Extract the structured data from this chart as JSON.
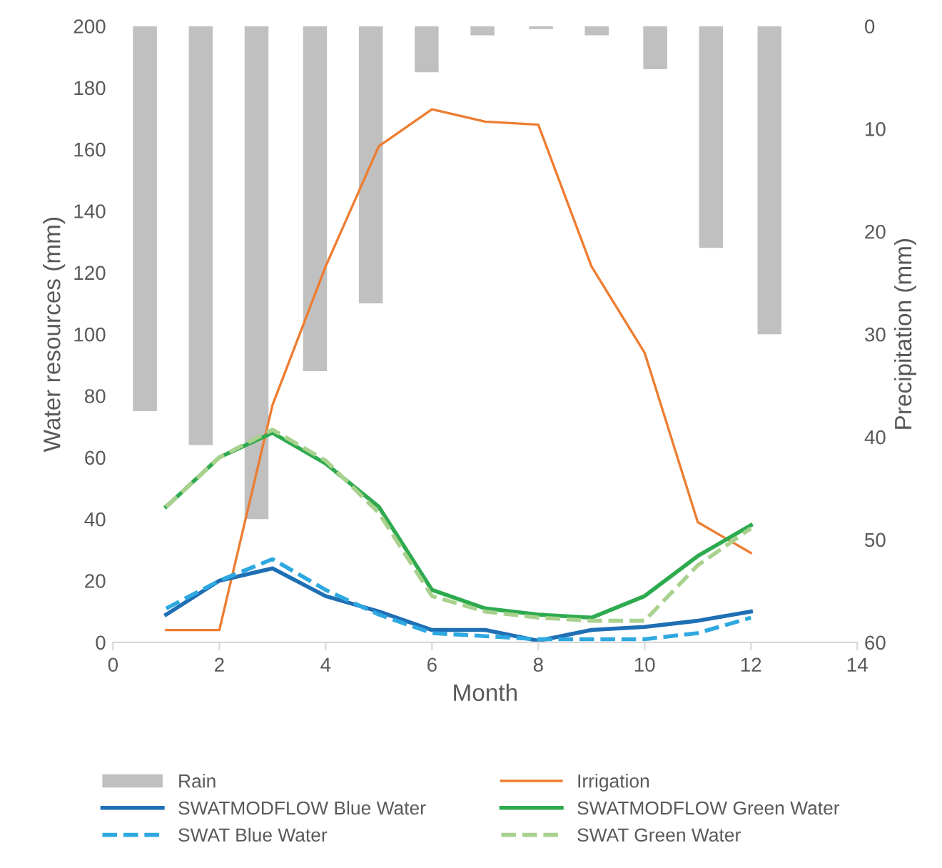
{
  "chart_data": {
    "type": "line",
    "xlabel": "Month",
    "ylabel": "Water resources (mm)",
    "y2label": "Precipitation (mm)",
    "xlim": [
      0,
      14
    ],
    "xticks": [
      0,
      2,
      4,
      6,
      8,
      10,
      12,
      14
    ],
    "ylim": [
      0,
      200
    ],
    "yticks": [
      0,
      20,
      40,
      60,
      80,
      100,
      120,
      140,
      160,
      180,
      200
    ],
    "y2lim": [
      60,
      0
    ],
    "y2ticks": [
      0,
      10,
      20,
      30,
      40,
      50,
      60
    ],
    "grid": false,
    "legend": "bottom",
    "line_style": "solid",
    "series": [
      {
        "name": "Rain",
        "type": "bar",
        "axis": "y2",
        "color": "#c0c0c0",
        "x": [
          0.6,
          1.65,
          2.7,
          3.8,
          4.85,
          5.9,
          6.95,
          8.05,
          9.1,
          10.2,
          11.25,
          12.35
        ],
        "values": [
          37.5,
          40.8,
          48,
          33.6,
          27,
          4.5,
          0.9,
          0.3,
          0.9,
          4.2,
          21.6,
          30
        ]
      },
      {
        "name": "Irrigation",
        "color": "#ed7d31",
        "x": [
          1,
          2,
          3,
          4,
          5,
          6,
          7,
          8,
          9,
          10,
          11,
          12
        ],
        "values": [
          4,
          4,
          77,
          122,
          161,
          173,
          169,
          168,
          122,
          94,
          39,
          29
        ]
      },
      {
        "name": "SWATMODFLOW Blue Water",
        "color": "#1f6fb5",
        "x": [
          1,
          2,
          3,
          4,
          5,
          6,
          7,
          8,
          9,
          10,
          11,
          12
        ],
        "values": [
          9,
          20,
          24,
          15,
          10,
          4,
          4,
          0.5,
          4,
          5,
          7,
          10
        ]
      },
      {
        "name": "SWATMODFLOW Green Water",
        "color": "#2eaa4f",
        "x": [
          1,
          2,
          3,
          4,
          5,
          6,
          7,
          8,
          9,
          10,
          11,
          12
        ],
        "values": [
          44,
          60,
          68,
          58,
          44,
          17,
          11,
          9,
          8,
          15,
          28,
          38
        ]
      },
      {
        "name": "SWAT Blue Water",
        "line_style": "dashed",
        "color": "#2ea8e0",
        "x": [
          1,
          2,
          3,
          4,
          5,
          6,
          7,
          8,
          9,
          10,
          11,
          12
        ],
        "values": [
          11,
          20,
          27,
          17,
          9,
          3,
          2,
          1,
          1,
          1,
          3,
          8
        ]
      },
      {
        "name": "SWAT Green Water",
        "line_style": "dashed",
        "color": "#a9d18e",
        "x": [
          1,
          2,
          3,
          4,
          5,
          6,
          7,
          8,
          9,
          10,
          11,
          12
        ],
        "values": [
          44,
          60,
          69,
          59,
          42,
          15,
          10,
          8,
          7,
          7,
          25,
          37
        ]
      }
    ]
  }
}
